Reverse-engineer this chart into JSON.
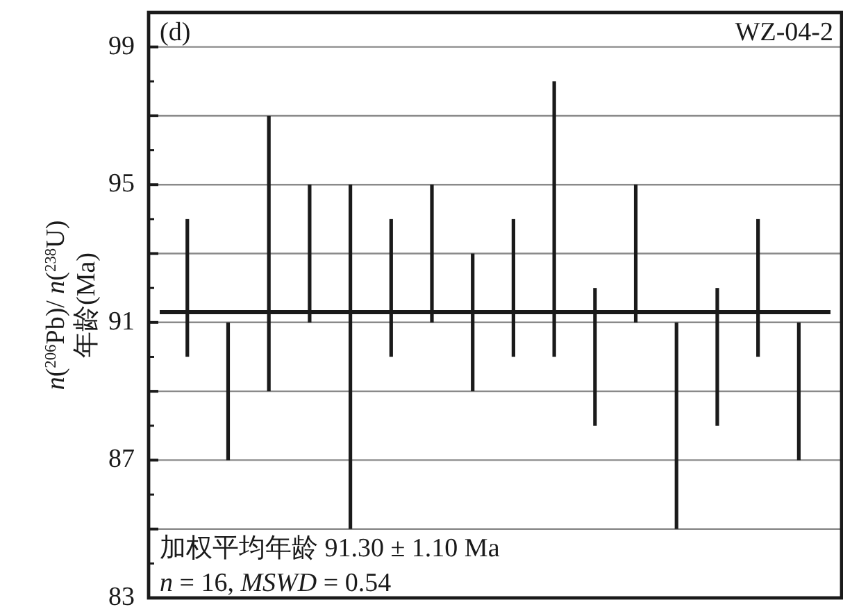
{
  "chart_data": {
    "type": "bar",
    "color": "#1a1a1a",
    "categories": [
      null,
      null,
      null,
      null,
      null,
      null,
      null,
      null,
      null,
      null,
      null,
      null,
      null,
      null,
      null,
      null
    ],
    "base": [
      90,
      87,
      89,
      91,
      85,
      90,
      91,
      89,
      90,
      90,
      88,
      91,
      85,
      88,
      90,
      87
    ],
    "values": [
      4,
      4,
      8,
      4,
      10,
      4,
      4,
      4,
      4,
      8,
      4,
      4,
      6,
      4,
      4,
      4
    ],
    "ylim": [
      83,
      100
    ],
    "yticks": [
      83,
      {
        "value": 85,
        "label": null
      },
      87,
      {
        "value": 89,
        "label": null
      },
      91,
      {
        "value": 93,
        "label": null
      },
      95,
      {
        "value": 97,
        "label": null
      },
      99
    ],
    "grid": "y",
    "tick_labels": "y",
    "ylabel": "*n*($^{206}$Pb)/ *n*($^{238}$U)\n年龄(Ma)",
    "ref_lines": [
      {
        "axis": "y",
        "value": 91.3,
        "label": null,
        "color": "#1a1a1a"
      }
    ],
    "annotations": [
      "(d)",
      "WZ-04-2",
      "加权平均年龄 91.30 ± 1.10 Ma",
      "*n* = 16, *MSWD* = 0.54"
    ]
  }
}
